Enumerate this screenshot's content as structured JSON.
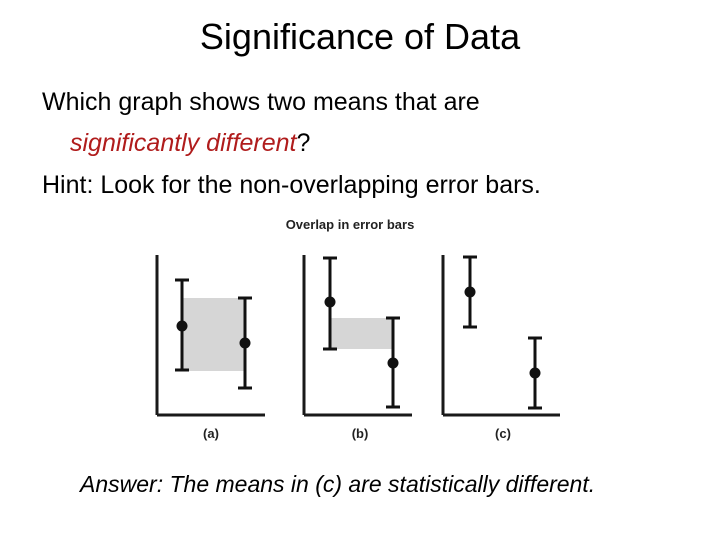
{
  "slide": {
    "title": "Significance of Data",
    "question_line1": "Which graph shows two means that are",
    "question_emphasis": "significantly different",
    "question_end": "?",
    "hint": "Hint: Look for the non-overlapping error bars.",
    "answer": "Answer: The means in (c) are statistically different."
  },
  "figure": {
    "title": "Overlap in error bars",
    "panels": [
      {
        "label": "(a)"
      },
      {
        "label": "(b)"
      },
      {
        "label": "(c)"
      }
    ],
    "colors": {
      "axis": "#1a1a1a",
      "overlap_shade": "#d6d6d6",
      "marker": "#111111"
    }
  }
}
